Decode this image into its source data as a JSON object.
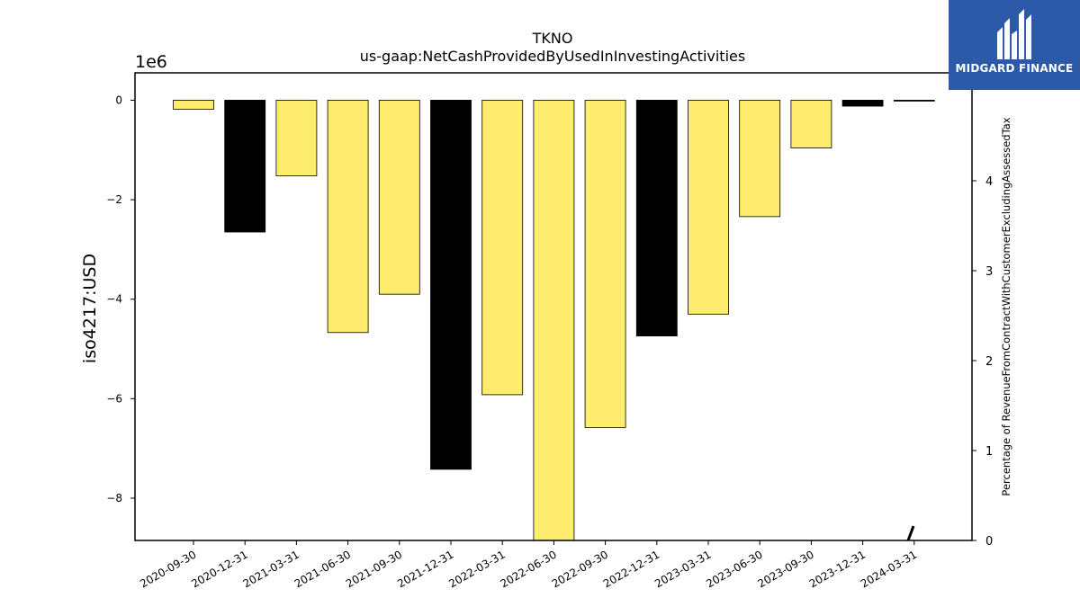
{
  "chart_data": {
    "type": "bar",
    "title": "TKNO",
    "subtitle": "us-gaap:NetCashProvidedByUsedInInvestingActivities",
    "ylabel": "iso4217:USD",
    "y_multiplier_label": "1e6",
    "y2label": "Percentage of RevenueFromContractWithCustomerExcludingAssessedTax",
    "ylim": [
      -8.85,
      0.55
    ],
    "y2lim": [
      0,
      5.2
    ],
    "yticks": [
      0,
      -2,
      -4,
      -6,
      -8
    ],
    "yticklabels": [
      "0",
      "−2",
      "−4",
      "−6",
      "−8"
    ],
    "y2ticks": [
      0,
      1,
      2,
      3,
      4
    ],
    "y2ticklabels": [
      "0",
      "1",
      "2",
      "3",
      "4"
    ],
    "categories": [
      "2020-09-30",
      "2020-12-31",
      "2021-03-31",
      "2021-06-30",
      "2021-09-30",
      "2021-12-31",
      "2022-03-31",
      "2022-06-30",
      "2022-09-30",
      "2022-12-31",
      "2023-03-31",
      "2023-06-30",
      "2023-09-30",
      "2023-12-31",
      "2024-03-31"
    ],
    "values": [
      -0.18,
      -2.65,
      -1.52,
      -4.67,
      -3.9,
      -7.42,
      -5.92,
      -8.85,
      -6.58,
      -4.74,
      -4.3,
      -2.34,
      -0.96,
      -0.12,
      -0.01
    ],
    "bar_colors": [
      "#fdec6e",
      "#000000",
      "#fdec6e",
      "#fdec6e",
      "#fdec6e",
      "#000000",
      "#fdec6e",
      "#fdec6e",
      "#fdec6e",
      "#000000",
      "#fdec6e",
      "#fdec6e",
      "#fdec6e",
      "#000000",
      "#000000"
    ],
    "grid": false,
    "legend": "none"
  },
  "logo": {
    "text": "MIDGARD FINANCE",
    "background": "#2c5aa8"
  }
}
